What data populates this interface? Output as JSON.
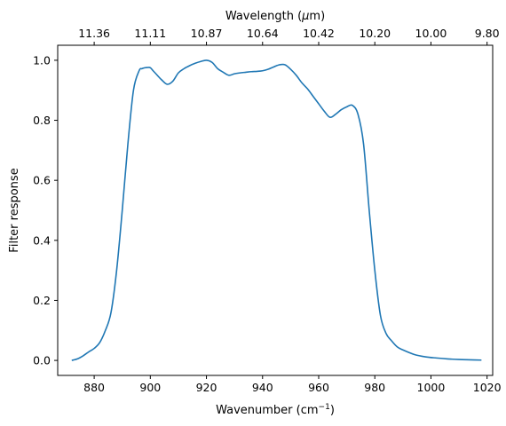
{
  "chart_data": {
    "type": "line",
    "xlabel": "Wavenumber (cm",
    "xlabel_sup": "−1",
    "xlabel_end": ")",
    "ylabel": "Filter response",
    "top_xlabel": "Wavelength (",
    "top_xlabel_mu": "μ",
    "top_xlabel_end": "m)",
    "xlim": [
      867,
      1022
    ],
    "ylim": [
      -0.05,
      1.05
    ],
    "grid": false,
    "x_ticks": [
      880,
      900,
      920,
      940,
      960,
      980,
      1000,
      1020
    ],
    "y_ticks": [
      0.0,
      0.2,
      0.4,
      0.6,
      0.8,
      1.0
    ],
    "y_tick_labels": [
      "0.0",
      "0.2",
      "0.4",
      "0.6",
      "0.8",
      "1.0"
    ],
    "top_ticks": [
      {
        "at": 880,
        "label": "11.36"
      },
      {
        "at": 900,
        "label": "11.11"
      },
      {
        "at": 920,
        "label": "10.87"
      },
      {
        "at": 940,
        "label": "10.64"
      },
      {
        "at": 960,
        "label": "10.42"
      },
      {
        "at": 980,
        "label": "10.20"
      },
      {
        "at": 1000,
        "label": "10.00"
      },
      {
        "at": 1020,
        "label": "9.80"
      }
    ],
    "series": [
      {
        "color": "#1f77b4",
        "x": [
          872,
          874,
          876,
          878,
          880,
          882,
          884,
          886,
          888,
          890,
          892,
          894,
          896,
          897,
          898,
          899,
          900,
          901,
          902,
          904,
          906,
          908,
          910,
          912,
          914,
          916,
          918,
          920,
          922,
          924,
          926,
          928,
          930,
          932,
          934,
          936,
          938,
          940,
          942,
          944,
          946,
          948,
          950,
          952,
          954,
          956,
          958,
          960,
          962,
          964,
          966,
          968,
          970,
          972,
          974,
          976,
          978,
          980,
          982,
          984,
          986,
          988,
          990,
          994,
          998,
          1002,
          1006,
          1010,
          1014,
          1018
        ],
        "y": [
          0.0,
          0.005,
          0.015,
          0.028,
          0.04,
          0.06,
          0.1,
          0.16,
          0.3,
          0.5,
          0.72,
          0.9,
          0.965,
          0.972,
          0.975,
          0.976,
          0.975,
          0.965,
          0.955,
          0.935,
          0.92,
          0.93,
          0.958,
          0.972,
          0.982,
          0.99,
          0.996,
          1.0,
          0.993,
          0.972,
          0.96,
          0.95,
          0.955,
          0.958,
          0.96,
          0.962,
          0.963,
          0.965,
          0.97,
          0.978,
          0.985,
          0.985,
          0.97,
          0.95,
          0.925,
          0.905,
          0.88,
          0.855,
          0.83,
          0.81,
          0.82,
          0.835,
          0.845,
          0.85,
          0.82,
          0.72,
          0.5,
          0.3,
          0.15,
          0.09,
          0.065,
          0.045,
          0.035,
          0.02,
          0.012,
          0.008,
          0.005,
          0.003,
          0.002,
          0.001
        ]
      }
    ]
  }
}
